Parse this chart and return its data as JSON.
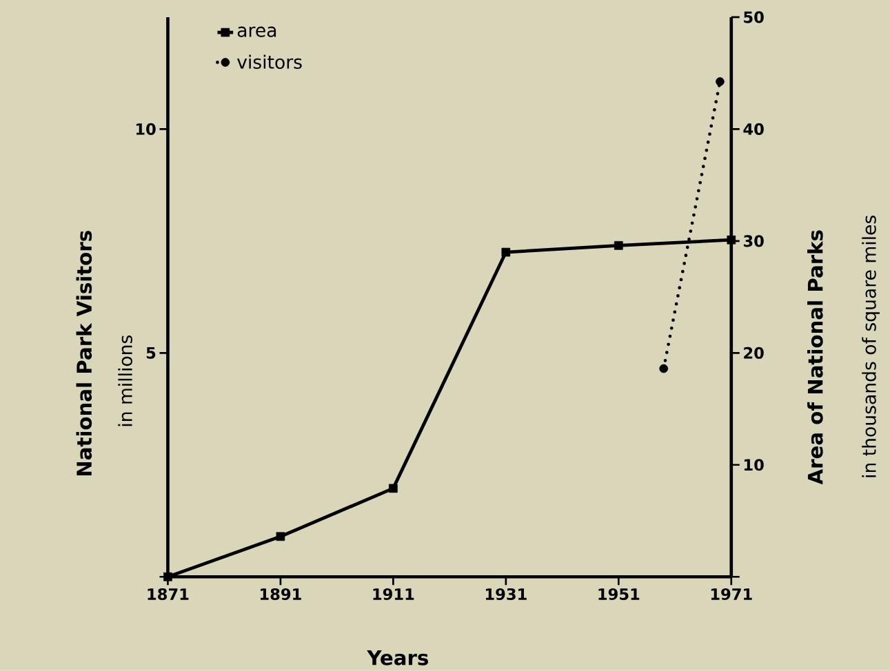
{
  "chart_data": {
    "type": "line",
    "xlabel": "Years",
    "ylabel": "National Park Visitors",
    "y2label": "Area of National Parks",
    "annotations": [
      "in millions",
      "in thousands of square miles"
    ],
    "x": [
      1871,
      1891,
      1911,
      1931,
      1951,
      1971
    ],
    "xlim": [
      1871,
      1971
    ],
    "xticks": [
      1871,
      1891,
      1911,
      1931,
      1951,
      1971
    ],
    "ylim": [
      0,
      12.5
    ],
    "yticks": [
      {
        "value": 0,
        "label": null
      },
      5,
      10
    ],
    "y2lim": [
      0,
      50
    ],
    "y2ticks": [
      {
        "value": 0,
        "label": null
      },
      10,
      20,
      30,
      40,
      50
    ],
    "legend": "top left",
    "series": [
      {
        "name": "area",
        "color": "#000000",
        "axis": "y2",
        "marker": "square",
        "line_style": "solid",
        "values": [
          0,
          3.6,
          7.9,
          29.0,
          29.6,
          30.1
        ]
      },
      {
        "name": "visitors",
        "color": "#000000",
        "axis": "y",
        "marker": "circle",
        "line_style": "dotted",
        "x": [
          1959,
          1969
        ],
        "values": [
          4.65,
          11.06
        ]
      }
    ]
  }
}
